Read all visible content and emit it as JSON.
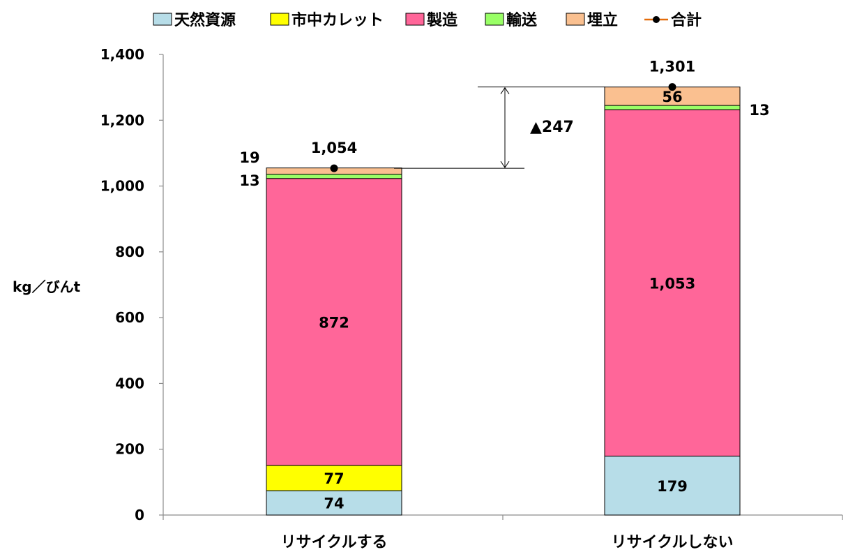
{
  "chart_data": {
    "type": "bar",
    "stacked": true,
    "categories": [
      "リサイクルする",
      "リサイクルしない"
    ],
    "series": [
      {
        "name": "天然資源",
        "color": "#b7dde8",
        "values": [
          74,
          179
        ]
      },
      {
        "name": "市中カレット",
        "color": "#ffff00",
        "values": [
          77,
          0
        ]
      },
      {
        "name": "製造",
        "color": "#ff6699",
        "values": [
          872,
          1053
        ]
      },
      {
        "name": "輸送",
        "color": "#99ff66",
        "values": [
          13,
          13
        ]
      },
      {
        "name": "埋立",
        "color": "#fac090",
        "values": [
          19,
          56
        ]
      }
    ],
    "total": {
      "name": "合計",
      "values": [
        1054,
        1301
      ],
      "labels": [
        "1,054",
        "1,301"
      ],
      "color": "#000000",
      "line_color": "#e46c0a"
    },
    "data_labels": [
      [
        "74",
        "77",
        "872",
        "13",
        "19"
      ],
      [
        "179",
        "",
        "1,053",
        "13",
        "56"
      ]
    ],
    "ylabel": "kg／びんt",
    "ylim": [
      0,
      1400
    ],
    "yticks": [
      0,
      200,
      400,
      600,
      800,
      1000,
      1200,
      1400
    ],
    "ytick_labels": [
      "0",
      "200",
      "400",
      "600",
      "800",
      "1,000",
      "1,200",
      "1,400"
    ],
    "difference_label": "▲247",
    "legend_position": "top"
  }
}
